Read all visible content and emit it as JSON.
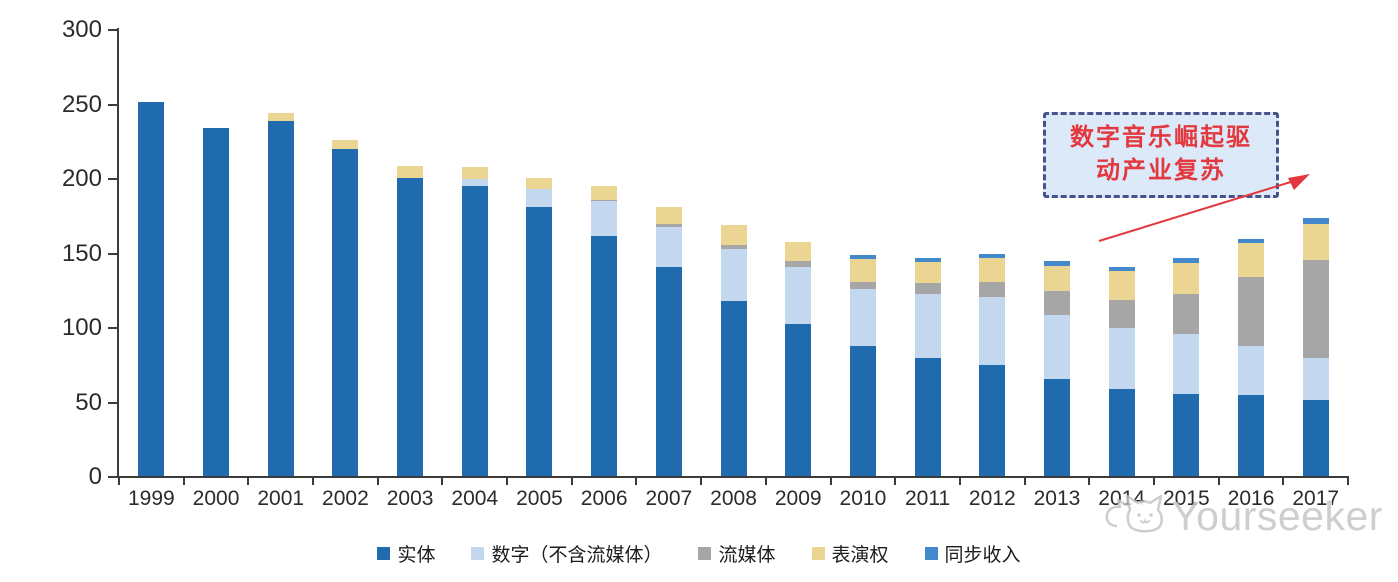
{
  "chart_data": {
    "type": "bar",
    "stacked": true,
    "title": "",
    "xlabel": "",
    "ylabel": "",
    "ylim": [
      0,
      300
    ],
    "yticks": [
      0,
      50,
      100,
      150,
      200,
      250,
      300
    ],
    "grid": false,
    "legend_position": "bottom",
    "categories": [
      "1999",
      "2000",
      "2001",
      "2002",
      "2003",
      "2004",
      "2005",
      "2006",
      "2007",
      "2008",
      "2009",
      "2010",
      "2011",
      "2012",
      "2013",
      "2014",
      "2015",
      "2016",
      "2017"
    ],
    "series": [
      {
        "key": "physical",
        "name": "实体",
        "color": "#1f6bad",
        "values": [
          252,
          234,
          239,
          220,
          201,
          195,
          181,
          162,
          141,
          118,
          103,
          88,
          80,
          75,
          66,
          59,
          56,
          55,
          52
        ]
      },
      {
        "key": "digital-ex-streaming",
        "name": "数字（不含流媒体）",
        "color": "#c3d8ef",
        "values": [
          0,
          0,
          0,
          0,
          0,
          5,
          12,
          23,
          27,
          35,
          38,
          38,
          43,
          46,
          43,
          41,
          40,
          33,
          28
        ]
      },
      {
        "key": "streaming",
        "name": "流媒体",
        "color": "#a6a6a6",
        "values": [
          0,
          0,
          0,
          0,
          0,
          0,
          0,
          1,
          2,
          3,
          4,
          5,
          7,
          10,
          16,
          19,
          27,
          46,
          66
        ]
      },
      {
        "key": "performance-rights",
        "name": "表演权",
        "color": "#ebd592",
        "values": [
          0,
          0,
          5,
          6,
          8,
          8,
          8,
          9,
          11,
          13,
          13,
          15,
          14,
          16,
          17,
          19,
          21,
          23,
          24
        ]
      },
      {
        "key": "sync",
        "name": "同步收入",
        "color": "#4389cb",
        "values": [
          0,
          0,
          0,
          0,
          0,
          0,
          0,
          0,
          0,
          0,
          0,
          3,
          3,
          3,
          3,
          3,
          3,
          3,
          4
        ]
      }
    ]
  },
  "annotation": {
    "lines": [
      "数字音乐崛起驱",
      "动产业复苏"
    ],
    "text_color": "#e2383e",
    "fill": "#dce9f8",
    "border_color": "#47548c"
  },
  "arrow": {
    "color": "#e2383e"
  },
  "watermark": {
    "text": "Yourseeker",
    "icon": "cat-logo",
    "color": "#c6c6c6"
  }
}
